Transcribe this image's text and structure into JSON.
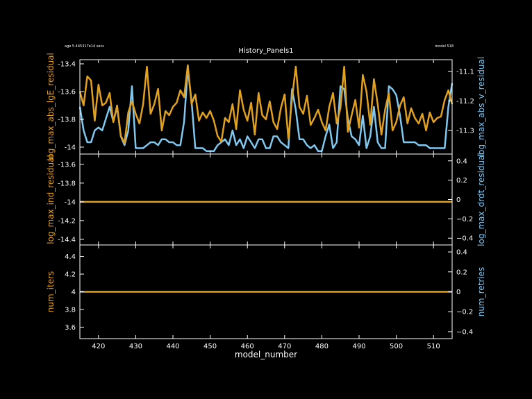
{
  "header": {
    "title": "History_Panels1",
    "age": "age 5.445317e14 secs",
    "model": "model 518"
  },
  "colors": {
    "left": "#e0a020",
    "right": "#80c8f0",
    "frame": "#ffffff",
    "background": "#000000"
  },
  "chart_data": [
    {
      "type": "line",
      "panel": "top",
      "xlabel": "model_number",
      "xlim": [
        415,
        515
      ],
      "xticks": [
        420,
        430,
        440,
        450,
        460,
        470,
        480,
        490,
        500,
        510
      ],
      "grid": false,
      "left_axis": {
        "label": "log_max_abs_lgE_residual",
        "ylim": [
          -14.05,
          -13.37
        ],
        "ticks": [
          -13.4,
          -13.6,
          -13.8,
          -14
        ],
        "tick_labels": [
          "-13.4",
          "-13.6",
          "-13.8",
          "-14"
        ]
      },
      "right_axis": {
        "label": "log_max_abs_v_residual",
        "ylim": [
          -11.38,
          -11.06
        ],
        "ticks": [
          -11.1,
          -11.2,
          -11.3
        ],
        "tick_labels": [
          "-11.1",
          "-11.2",
          "-11.3"
        ]
      },
      "series": [
        {
          "axis": "left",
          "x": [
            415,
            416,
            417,
            418,
            419,
            420,
            421,
            422,
            423,
            424,
            425,
            426,
            427,
            428,
            429,
            430,
            431,
            432,
            433,
            434,
            435,
            436,
            437,
            438,
            439,
            440,
            441,
            442,
            443,
            444,
            445,
            446,
            447,
            448,
            449,
            450,
            451,
            452,
            453,
            454,
            455,
            456,
            457,
            458,
            459,
            460,
            461,
            462,
            463,
            464,
            465,
            466,
            467,
            468,
            469,
            470,
            471,
            472,
            473,
            474,
            475,
            476,
            477,
            478,
            479,
            480,
            481,
            482,
            483,
            484,
            485,
            486,
            487,
            488,
            489,
            490,
            491,
            492,
            493,
            494,
            495,
            496,
            497,
            498,
            499,
            500,
            501,
            502,
            503,
            504,
            505,
            506,
            507,
            508,
            509,
            510,
            511,
            512,
            513,
            514,
            515
          ],
          "y": [
            -13.6,
            -13.7,
            -13.49,
            -13.52,
            -13.81,
            -13.55,
            -13.7,
            -13.68,
            -13.61,
            -13.82,
            -13.7,
            -13.92,
            -13.97,
            -13.75,
            -13.67,
            -13.76,
            -13.83,
            -13.69,
            -13.42,
            -13.76,
            -13.69,
            -13.58,
            -13.88,
            -13.74,
            -13.77,
            -13.71,
            -13.68,
            -13.59,
            -13.64,
            -13.41,
            -13.69,
            -13.62,
            -13.81,
            -13.75,
            -13.79,
            -13.74,
            -13.81,
            -13.92,
            -13.96,
            -13.79,
            -13.82,
            -13.69,
            -13.87,
            -13.59,
            -13.73,
            -13.81,
            -13.68,
            -13.91,
            -13.61,
            -13.77,
            -13.8,
            -13.67,
            -13.82,
            -13.87,
            -13.72,
            -13.62,
            -13.94,
            -13.65,
            -13.42,
            -13.71,
            -13.76,
            -13.63,
            -13.84,
            -13.79,
            -13.73,
            -13.82,
            -13.88,
            -13.71,
            -13.61,
            -13.83,
            -13.72,
            -13.42,
            -13.89,
            -13.77,
            -13.66,
            -13.86,
            -13.48,
            -13.6,
            -13.84,
            -13.51,
            -13.69,
            -13.91,
            -13.73,
            -13.61,
            -13.88,
            -13.82,
            -13.7,
            -13.64,
            -13.83,
            -13.72,
            -13.79,
            -13.83,
            -13.76,
            -13.88,
            -13.75,
            -13.82,
            -13.79,
            -13.78,
            -13.66,
            -13.59,
            -13.69
          ]
        },
        {
          "axis": "right",
          "x": [
            415,
            416,
            417,
            418,
            419,
            420,
            421,
            422,
            423,
            424,
            425,
            426,
            427,
            428,
            429,
            430,
            431,
            432,
            433,
            434,
            435,
            436,
            437,
            438,
            439,
            440,
            441,
            442,
            443,
            444,
            445,
            446,
            447,
            448,
            449,
            450,
            451,
            452,
            453,
            454,
            455,
            456,
            457,
            458,
            459,
            460,
            461,
            462,
            463,
            464,
            465,
            466,
            467,
            468,
            469,
            470,
            471,
            472,
            473,
            474,
            475,
            476,
            477,
            478,
            479,
            480,
            481,
            482,
            483,
            484,
            485,
            486,
            487,
            488,
            489,
            490,
            491,
            492,
            493,
            494,
            495,
            496,
            497,
            498,
            499,
            500,
            501,
            502,
            503,
            504,
            505,
            506,
            507,
            508,
            509,
            510,
            511,
            512,
            513,
            514,
            515
          ],
          "y": [
            -11.22,
            -11.3,
            -11.34,
            -11.34,
            -11.3,
            -11.29,
            -11.3,
            -11.26,
            -11.22,
            -11.27,
            -11.22,
            -11.32,
            -11.35,
            -11.3,
            -11.15,
            -11.36,
            -11.36,
            -11.36,
            -11.35,
            -11.34,
            -11.34,
            -11.35,
            -11.33,
            -11.33,
            -11.34,
            -11.34,
            -11.35,
            -11.35,
            -11.27,
            -11.09,
            -11.2,
            -11.36,
            -11.36,
            -11.36,
            -11.37,
            -11.37,
            -11.37,
            -11.35,
            -11.34,
            -11.33,
            -11.35,
            -11.3,
            -11.35,
            -11.33,
            -11.36,
            -11.32,
            -11.34,
            -11.36,
            -11.33,
            -11.33,
            -11.36,
            -11.36,
            -11.32,
            -11.32,
            -11.34,
            -11.35,
            -11.36,
            -11.16,
            -11.23,
            -11.33,
            -11.33,
            -11.35,
            -11.36,
            -11.35,
            -11.37,
            -11.37,
            -11.32,
            -11.28,
            -11.36,
            -11.34,
            -11.15,
            -11.16,
            -11.26,
            -11.32,
            -11.33,
            -11.35,
            -11.25,
            -11.36,
            -11.32,
            -11.22,
            -11.34,
            -11.36,
            -11.36,
            -11.15,
            -11.16,
            -11.18,
            -11.25,
            -11.34,
            -11.34,
            -11.34,
            -11.34,
            -11.35,
            -11.35,
            -11.35,
            -11.36,
            -11.36,
            -11.36,
            -11.36,
            -11.36,
            -11.22,
            -11.14
          ]
        }
      ]
    },
    {
      "type": "line",
      "panel": "middle",
      "xlabel": "model_number",
      "xlim": [
        415,
        515
      ],
      "grid": false,
      "left_axis": {
        "label": "log_max_ind_residual",
        "ylim": [
          -14.46,
          -13.49
        ],
        "ticks": [
          -13.6,
          -13.8,
          -14,
          -14.2,
          -14.4
        ],
        "tick_labels": [
          "-13.6",
          "-13.8",
          "-14",
          "-14.2",
          "-14.4"
        ]
      },
      "right_axis": {
        "label": "log_max_drdt_residual",
        "ylim": [
          -0.47,
          0.47
        ],
        "ticks": [
          0.4,
          0.2,
          0,
          -0.2,
          -0.4
        ],
        "tick_labels": [
          "0.4",
          "0.2",
          "0",
          "−0.2",
          "−0.4"
        ]
      },
      "series": [
        {
          "axis": "left",
          "x": [
            415,
            515
          ],
          "y": [
            -14,
            -14
          ]
        }
      ]
    },
    {
      "type": "line",
      "panel": "bottom",
      "xlabel": "model_number",
      "xlim": [
        415,
        515
      ],
      "xticks": [
        420,
        430,
        440,
        450,
        460,
        470,
        480,
        490,
        500,
        510
      ],
      "xtick_labels": [
        "420",
        "430",
        "440",
        "450",
        "460",
        "470",
        "480",
        "490",
        "500",
        "510"
      ],
      "grid": false,
      "left_axis": {
        "label": "num_iters",
        "ylim": [
          3.47,
          4.53
        ],
        "ticks": [
          4.4,
          4.2,
          4,
          3.8,
          3.6
        ],
        "tick_labels": [
          "4.4",
          "4.2",
          "4",
          "3.8",
          "3.6"
        ]
      },
      "right_axis": {
        "label": "num_retries",
        "ylim": [
          -0.47,
          0.47
        ],
        "ticks": [
          0.4,
          0.2,
          0,
          -0.2,
          -0.4
        ],
        "tick_labels": [
          "0.4",
          "0.2",
          "0",
          "−0.2",
          "−0.4"
        ]
      },
      "series": [
        {
          "axis": "left",
          "x": [
            415,
            515
          ],
          "y": [
            4,
            4
          ]
        }
      ]
    }
  ]
}
